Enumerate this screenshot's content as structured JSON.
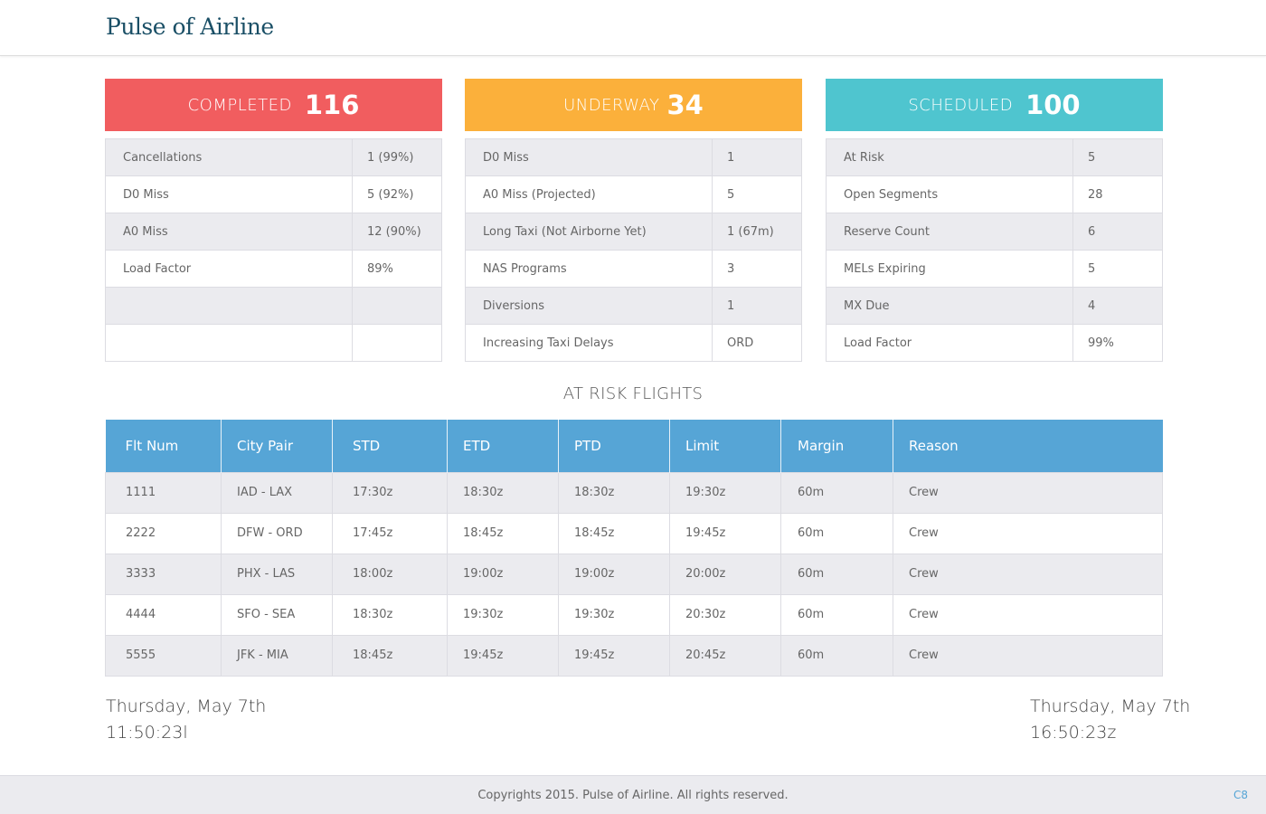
{
  "header": {
    "brand": "Pulse of Airline"
  },
  "colors": {
    "completed": "#f15d5f",
    "underway": "#fbb03b",
    "scheduled": "#4fc5cf",
    "table_header": "#56a5d6"
  },
  "cards": [
    {
      "label": "COMPLETED",
      "count": "116",
      "rows": [
        {
          "k": "Cancellations",
          "v": "1 (99%)"
        },
        {
          "k": "D0 Miss",
          "v": "5 (92%)"
        },
        {
          "k": "A0 Miss",
          "v": "12 (90%)"
        },
        {
          "k": "Load Factor",
          "v": "89%"
        },
        {
          "k": "",
          "v": ""
        },
        {
          "k": "",
          "v": ""
        }
      ]
    },
    {
      "label": "UNDERWAY",
      "count": "34",
      "rows": [
        {
          "k": "D0 Miss",
          "v": "1"
        },
        {
          "k": "A0 Miss (Projected)",
          "v": "5"
        },
        {
          "k": "Long Taxi (Not Airborne Yet)",
          "v": "1 (67m)"
        },
        {
          "k": "NAS Programs",
          "v": "3"
        },
        {
          "k": "Diversions",
          "v": "1"
        },
        {
          "k": "Increasing Taxi Delays",
          "v": "ORD"
        }
      ]
    },
    {
      "label": "SCHEDULED",
      "count": "100",
      "rows": [
        {
          "k": "At Risk",
          "v": "5"
        },
        {
          "k": "Open Segments",
          "v": "28"
        },
        {
          "k": "Reserve Count",
          "v": "6"
        },
        {
          "k": "MELs Expiring",
          "v": "5"
        },
        {
          "k": "MX Due",
          "v": "4"
        },
        {
          "k": "Load Factor",
          "v": "99%"
        }
      ]
    }
  ],
  "at_risk": {
    "title": "AT RISK FLIGHTS",
    "columns": [
      "Flt Num",
      "City Pair",
      "STD",
      "ETD",
      "PTD",
      "Limit",
      "Margin",
      "Reason"
    ],
    "rows": [
      [
        "1111",
        "IAD - LAX",
        "17:30z",
        "18:30z",
        "18:30z",
        "19:30z",
        "60m",
        "Crew"
      ],
      [
        "2222",
        "DFW - ORD",
        "17:45z",
        "18:45z",
        "18:45z",
        "19:45z",
        "60m",
        "Crew"
      ],
      [
        "3333",
        "PHX - LAS",
        "18:00z",
        "19:00z",
        "19:00z",
        "20:00z",
        "60m",
        "Crew"
      ],
      [
        "4444",
        "SFO - SEA",
        "18:30z",
        "19:30z",
        "19:30z",
        "20:30z",
        "60m",
        "Crew"
      ],
      [
        "5555",
        "JFK - MIA",
        "18:45z",
        "19:45z",
        "19:45z",
        "20:45z",
        "60m",
        "Crew"
      ]
    ]
  },
  "local_time": {
    "date": "Thursday, May 7th",
    "time": "11:50:23l"
  },
  "zulu_time": {
    "date": "Thursday, May 7th",
    "time": "16:50:23z"
  },
  "footer": {
    "copyright": "Copyrights 2015. Pulse of Airline. All rights reserved.",
    "badge": "C8"
  }
}
